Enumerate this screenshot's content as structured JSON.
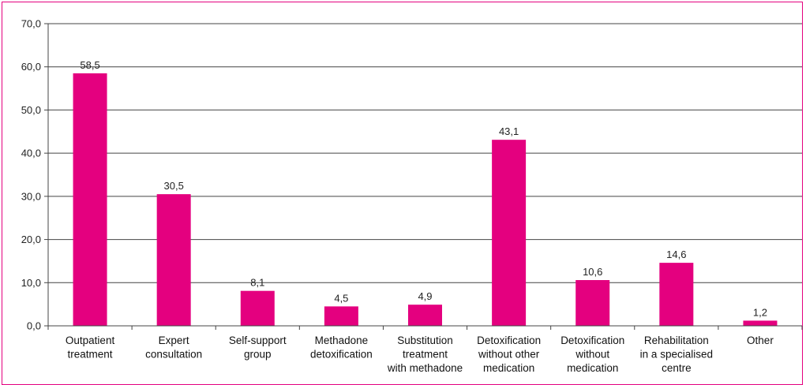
{
  "chart_data": {
    "type": "bar",
    "title": "",
    "xlabel": "",
    "ylabel": "",
    "ylim": [
      0,
      70
    ],
    "yticks": [
      "0,0",
      "10,0",
      "20,0",
      "30,0",
      "40,0",
      "50,0",
      "60,0",
      "70,0"
    ],
    "grid": true,
    "categories": [
      [
        "Outpatient",
        "treatment"
      ],
      [
        "Expert",
        "consultation"
      ],
      [
        "Self-support",
        "group"
      ],
      [
        "Methadone",
        "detoxification"
      ],
      [
        "Substitution",
        "treatment",
        "with methadone"
      ],
      [
        "Detoxification",
        "without other",
        "medication"
      ],
      [
        "Detoxification",
        "without",
        "medication"
      ],
      [
        "Rehabilitation",
        "in a specialised",
        "centre"
      ],
      [
        "Other"
      ]
    ],
    "values": [
      58.5,
      30.5,
      8.1,
      4.5,
      4.9,
      43.1,
      10.6,
      14.6,
      1.2
    ],
    "value_labels": [
      "58,5",
      "30,5",
      "8,1",
      "4,5",
      "4,9",
      "43,1",
      "10,6",
      "14,6",
      "1,2"
    ],
    "bar_color": "#e4007f",
    "grid_color": "#444444",
    "frame_color": "#e4007f"
  }
}
